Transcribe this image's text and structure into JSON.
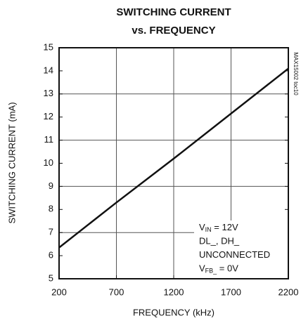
{
  "chart_data": {
    "type": "line",
    "title": [
      "SWITCHING CURRENT",
      "vs. FREQUENCY"
    ],
    "x_label": "FREQUENCY (kHz)",
    "y_label": "SWITCHING CURRENT (mA)",
    "side_label": "MAX15002 toc10",
    "x": [
      200,
      700,
      1200,
      1700,
      2200
    ],
    "series": [
      {
        "name": "SWITCHING CURRENT",
        "color": "#111111",
        "values": [
          6.35,
          8.3,
          10.2,
          12.15,
          14.1
        ]
      }
    ],
    "xlim": [
      200,
      2200
    ],
    "xticks": [
      200,
      700,
      1200,
      1700,
      2200
    ],
    "ylim": [
      5,
      15
    ],
    "yticks": [
      5,
      6,
      7,
      8,
      9,
      10,
      11,
      12,
      13,
      14,
      15
    ],
    "grid_x": [
      700,
      1200,
      1700
    ],
    "grid_y": [
      7,
      9,
      11,
      13
    ],
    "annotations": [
      {
        "base": "V",
        "sub": "IN",
        "text": " = 12V"
      },
      {
        "text": "DL_, DH_"
      },
      {
        "text": "UNCONNECTED"
      },
      {
        "base": "V",
        "sub": "FB_",
        "text": " = 0V"
      }
    ]
  }
}
